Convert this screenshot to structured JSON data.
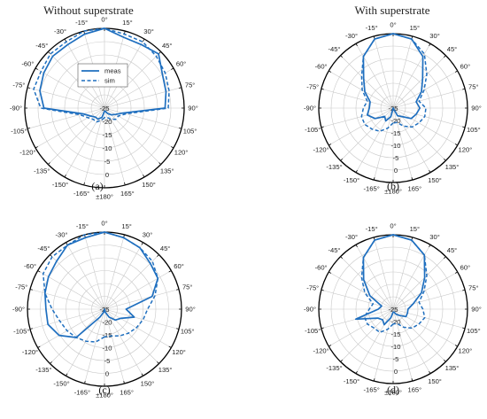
{
  "figure": {
    "column_titles": [
      "Without superstrate",
      "With superstrate"
    ],
    "colors": {
      "series": "#1f6fbf",
      "grid": "#c9c9c9",
      "rim": "#000000"
    }
  },
  "chart_data": [
    {
      "type": "polar",
      "panel_label": "(a)",
      "title": "Without superstrate",
      "angle_ticks": [
        "0°",
        "15°",
        "30°",
        "45°",
        "60°",
        "75°",
        "90°",
        "105°",
        "120°",
        "135°",
        "150°",
        "165°",
        "±180°",
        "-165°",
        "-150°",
        "-135°",
        "-120°",
        "-105°",
        "-90°",
        "-75°",
        "-60°",
        "-45°",
        "-30°",
        "-15°"
      ],
      "radial_ticks": [
        "-25",
        "-20",
        "-15",
        "-10",
        "-5",
        "0"
      ],
      "rlim": [
        -25,
        0
      ],
      "legend": {
        "entries": [
          "meas",
          "sim"
        ],
        "placement": "upper-center"
      },
      "series": [
        {
          "name": "meas",
          "angles": [
            -180,
            -165,
            -150,
            -135,
            -120,
            -105,
            -90,
            -75,
            -60,
            -45,
            -30,
            -15,
            0,
            15,
            30,
            45,
            60,
            75,
            90,
            105,
            120,
            135,
            150,
            165
          ],
          "values": [
            -24,
            -22,
            -21,
            -21,
            -20,
            -18,
            -6,
            -4,
            -3,
            -2,
            -2,
            -1,
            0,
            -2,
            -2,
            -1,
            -4,
            -5,
            -6,
            -19,
            -21,
            -22,
            -23,
            -24
          ]
        },
        {
          "name": "sim",
          "angles": [
            -180,
            -165,
            -150,
            -135,
            -120,
            -105,
            -90,
            -75,
            -60,
            -45,
            -30,
            -15,
            0,
            15,
            30,
            45,
            60,
            75,
            90,
            105,
            120,
            135,
            150,
            165
          ],
          "values": [
            -22,
            -21,
            -20,
            -20,
            -19,
            -17,
            -5,
            -2,
            -2,
            -1,
            -1,
            0,
            0,
            -1,
            -1,
            -2,
            -3,
            -4,
            -5,
            -18,
            -20,
            -20,
            -21,
            -22
          ]
        }
      ]
    },
    {
      "type": "polar",
      "panel_label": "(b)",
      "title": "With superstrate",
      "angle_ticks": [
        "0°",
        "15°",
        "30°",
        "45°",
        "60°",
        "75°",
        "90°",
        "105°",
        "120°",
        "135°",
        "150°",
        "165°",
        "±180°",
        "-165°",
        "-150°",
        "-135°",
        "-120°",
        "-105°",
        "-90°",
        "-75°",
        "-60°",
        "-45°",
        "-30°",
        "-15°"
      ],
      "radial_ticks": [
        "-25",
        "-20",
        "-15",
        "-10",
        "-5",
        "0"
      ],
      "rlim": [
        -25,
        0
      ],
      "series": [
        {
          "name": "meas",
          "angles": [
            -180,
            -165,
            -150,
            -135,
            -120,
            -105,
            -90,
            -75,
            -60,
            -45,
            -30,
            -15,
            0,
            15,
            30,
            45,
            60,
            75,
            90,
            105,
            120,
            135,
            150,
            165
          ],
          "values": [
            -25,
            -22,
            -20,
            -21,
            -18,
            -16,
            -17,
            -17,
            -14,
            -11,
            -5,
            -1,
            0,
            -1,
            -5,
            -11,
            -14,
            -17,
            -16,
            -17,
            -18,
            -21,
            -22,
            -25
          ]
        },
        {
          "name": "sim",
          "angles": [
            -180,
            -165,
            -150,
            -135,
            -120,
            -105,
            -90,
            -75,
            -60,
            -45,
            -30,
            -15,
            0,
            15,
            30,
            45,
            60,
            75,
            90,
            105,
            120,
            135,
            150,
            165
          ],
          "values": [
            -20,
            -18,
            -16,
            -15,
            -14,
            -14,
            -15,
            -16,
            -13,
            -10,
            -5,
            -1,
            0,
            -1,
            -4,
            -9,
            -13,
            -16,
            -14,
            -14,
            -15,
            -16,
            -18,
            -20
          ]
        }
      ]
    },
    {
      "type": "polar",
      "panel_label": "(c)",
      "angle_ticks": [
        "0°",
        "15°",
        "30°",
        "45°",
        "60°",
        "75°",
        "90°",
        "105°",
        "120°",
        "135°",
        "150°",
        "165°",
        "±180°",
        "-165°",
        "-150°",
        "-135°",
        "-120°",
        "-105°",
        "-90°",
        "-75°",
        "-60°",
        "-45°",
        "-30°",
        "-15°"
      ],
      "radial_ticks": [
        "-25",
        "-20",
        "-15",
        "-10",
        "-5",
        "0"
      ],
      "rlim": [
        -25,
        0
      ],
      "series": [
        {
          "name": "meas",
          "angles": [
            -180,
            -165,
            -150,
            -135,
            -120,
            -105,
            -90,
            -75,
            -60,
            -45,
            -30,
            -15,
            0,
            15,
            30,
            45,
            60,
            75,
            90,
            105,
            120,
            135,
            150,
            165
          ],
          "values": [
            -25,
            -24,
            -22,
            -12,
            -8,
            -6,
            -6,
            -5,
            -4,
            -3,
            -1,
            -1,
            0,
            -1,
            -2,
            -4,
            -5,
            -9,
            -18,
            -15,
            -19,
            -20,
            -22,
            -24
          ]
        },
        {
          "name": "sim",
          "angles": [
            -180,
            -165,
            -150,
            -135,
            -120,
            -105,
            -90,
            -75,
            -60,
            -45,
            -30,
            -15,
            0,
            15,
            30,
            45,
            60,
            75,
            90,
            105,
            120,
            135,
            150,
            165
          ],
          "values": [
            -16,
            -14,
            -13,
            -12,
            -11,
            -10,
            -8,
            -5,
            -2,
            -1,
            -1,
            0,
            0,
            -1,
            -2,
            -3,
            -5,
            -8,
            -11,
            -12,
            -13,
            -14,
            -15,
            -16
          ]
        }
      ]
    },
    {
      "type": "polar",
      "panel_label": "(d)",
      "angle_ticks": [
        "0°",
        "15°",
        "30°",
        "45°",
        "60°",
        "75°",
        "90°",
        "105°",
        "120°",
        "135°",
        "150°",
        "165°",
        "±180°",
        "-165°",
        "-150°",
        "-135°",
        "-120°",
        "-105°",
        "-90°",
        "-75°",
        "-60°",
        "-45°",
        "-30°",
        "-15°"
      ],
      "radial_ticks": [
        "-25",
        "-20",
        "-15",
        "-10",
        "-5",
        "0"
      ],
      "rlim": [
        -25,
        0
      ],
      "series": [
        {
          "name": "meas",
          "angles": [
            -180,
            -165,
            -150,
            -135,
            -120,
            -105,
            -90,
            -75,
            -60,
            -45,
            -30,
            -15,
            0,
            15,
            30,
            45,
            60,
            75,
            90,
            105,
            120,
            135,
            150,
            165
          ],
          "values": [
            -24,
            -22,
            -19,
            -20,
            -19,
            -12,
            -20,
            -21,
            -16,
            -11,
            -5,
            -1,
            0,
            -1,
            -4,
            -10,
            -14,
            -18,
            -20,
            -20,
            -20,
            -22,
            -23,
            -24
          ]
        },
        {
          "name": "sim",
          "angles": [
            -180,
            -165,
            -150,
            -135,
            -120,
            -105,
            -90,
            -75,
            -60,
            -45,
            -30,
            -15,
            0,
            15,
            30,
            45,
            60,
            75,
            90,
            105,
            120,
            135,
            150,
            165
          ],
          "values": [
            -20,
            -18,
            -16,
            -16,
            -15,
            -15,
            -17,
            -18,
            -14,
            -10,
            -5,
            -1,
            0,
            -1,
            -4,
            -9,
            -13,
            -16,
            -15,
            -14,
            -15,
            -16,
            -18,
            -20
          ]
        }
      ]
    }
  ]
}
